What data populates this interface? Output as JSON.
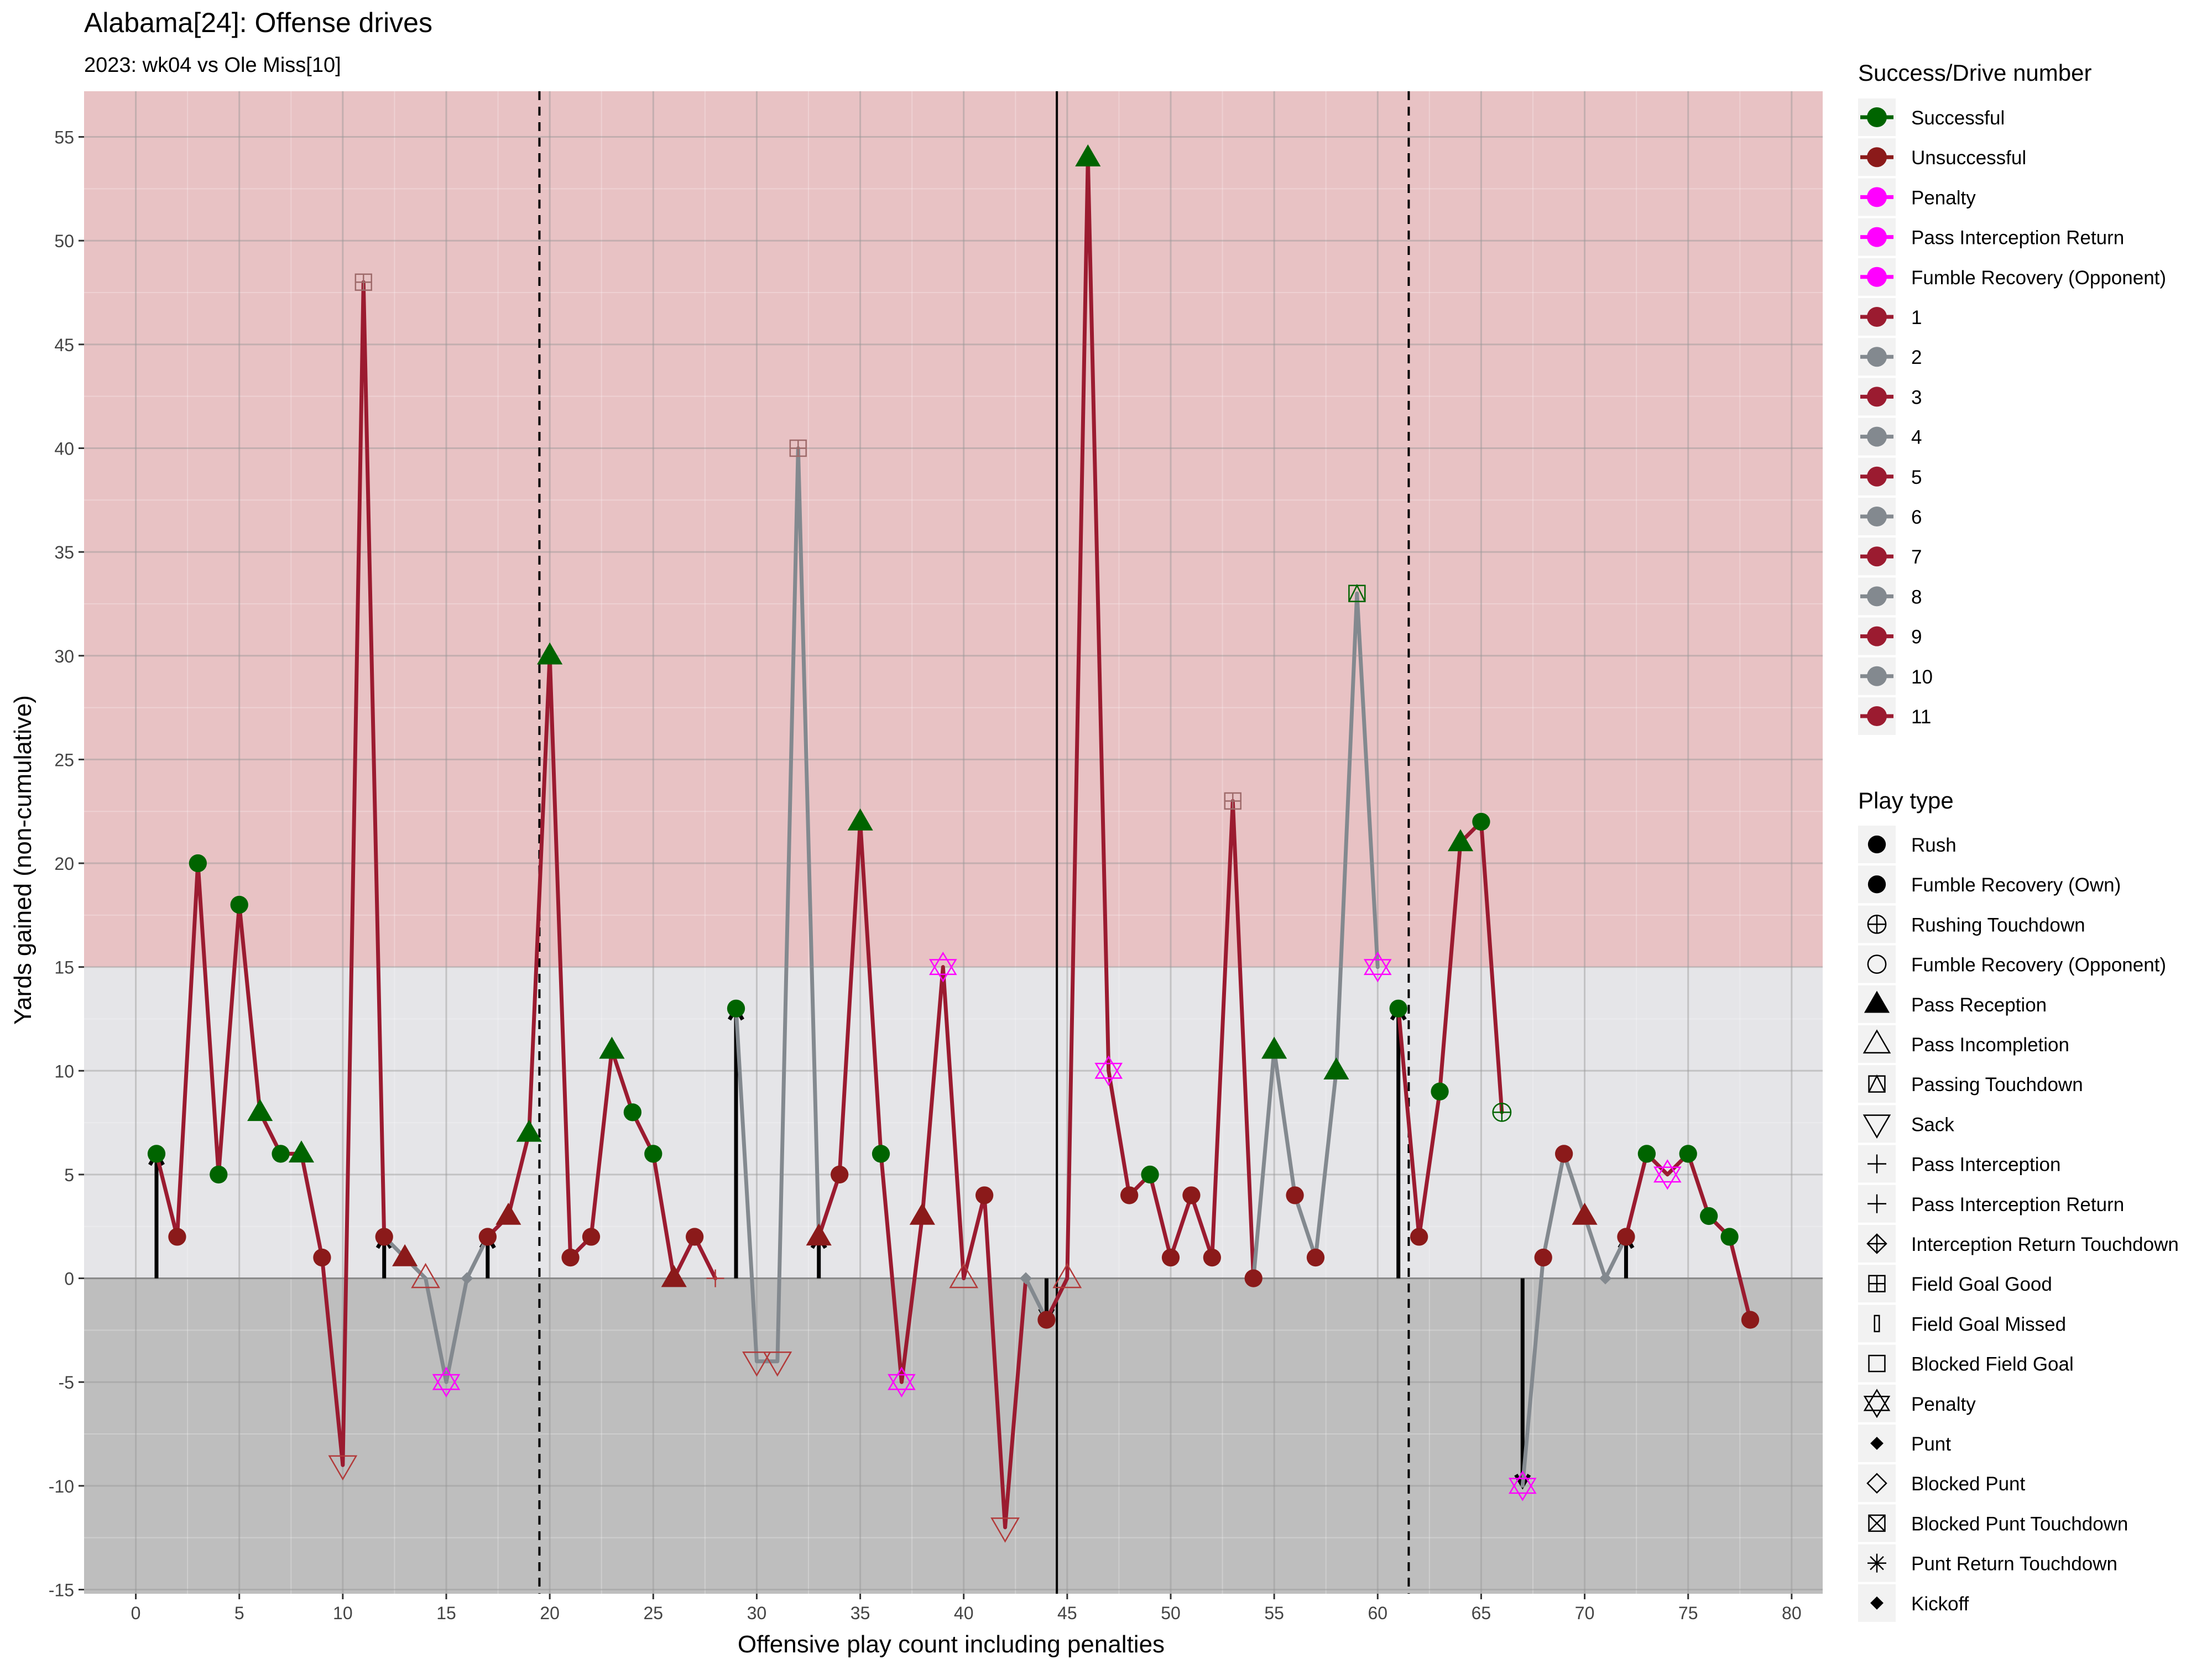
{
  "chart_data": {
    "type": "line",
    "title": "Alabama[24]: Offense drives",
    "subtitle": "2023: wk04 vs Ole Miss[10]",
    "xlabel": "Offensive play count including penalties",
    "ylabel": "Yards gained (non-cumulative)",
    "xlim": [
      -2.5,
      81.5
    ],
    "ylim": [
      -15.2,
      57.2
    ],
    "x_ticks": [
      0,
      5,
      10,
      15,
      20,
      25,
      30,
      35,
      40,
      45,
      50,
      55,
      60,
      65,
      70,
      75,
      80
    ],
    "y_ticks": [
      -15,
      -10,
      -5,
      0,
      5,
      10,
      15,
      20,
      25,
      30,
      35,
      40,
      45,
      50,
      55
    ],
    "grid": true,
    "legend_position": "right",
    "bands": [
      {
        "from": -15.2,
        "to": 0,
        "color": "#bebebe"
      },
      {
        "from": 0,
        "to": 15,
        "color": "#e5e5e8"
      },
      {
        "from": 15,
        "to": 57.2,
        "color": "#e8c2c4"
      }
    ],
    "vertical_lines": [
      {
        "x": 19.5,
        "style": "dashed"
      },
      {
        "x": 44.5,
        "style": "solid"
      },
      {
        "x": 61.5,
        "style": "dashed"
      }
    ],
    "colors": {
      "odd_drive": "#9b1b30",
      "even_drive": "#83898f",
      "successful": "#006400",
      "unsuccessful": "#8b1a1a",
      "penalty": "#ff00ff",
      "arrow": "#000000"
    },
    "drives": [
      {
        "name": "1",
        "start": 1,
        "end": 12
      },
      {
        "name": "2",
        "start": 12,
        "end": 17
      },
      {
        "name": "3",
        "start": 17,
        "end": 28
      },
      {
        "name": "4",
        "start": 29,
        "end": 33
      },
      {
        "name": "5",
        "start": 33,
        "end": 43
      },
      {
        "name": "6",
        "start": 43,
        "end": 44
      },
      {
        "name": "7",
        "start": 44,
        "end": 54
      },
      {
        "name": "8",
        "start": 54,
        "end": 60
      },
      {
        "name": "9",
        "start": 61,
        "end": 66
      },
      {
        "name": "10",
        "start": 67,
        "end": 72
      },
      {
        "name": "11",
        "start": 72,
        "end": 78
      }
    ],
    "arrows": [
      {
        "x": 1,
        "from": 0,
        "to": 6
      },
      {
        "x": 12,
        "from": 0,
        "to": 2
      },
      {
        "x": 17,
        "from": 0,
        "to": 2
      },
      {
        "x": 29,
        "from": 0,
        "to": 13
      },
      {
        "x": 33,
        "from": 0,
        "to": 2
      },
      {
        "x": 44,
        "from": 0,
        "to": -2
      },
      {
        "x": 61,
        "from": 0,
        "to": 13
      },
      {
        "x": 67,
        "from": 0,
        "to": -10
      },
      {
        "x": 72,
        "from": 0,
        "to": 2
      }
    ],
    "plays": [
      {
        "x": 1,
        "y": 6,
        "type": "Rush",
        "status": "Successful"
      },
      {
        "x": 2,
        "y": 2,
        "type": "Rush",
        "status": "Unsuccessful"
      },
      {
        "x": 3,
        "y": 20,
        "type": "Rush",
        "status": "Successful"
      },
      {
        "x": 4,
        "y": 5,
        "type": "Rush",
        "status": "Successful"
      },
      {
        "x": 5,
        "y": 18,
        "type": "Rush",
        "status": "Successful"
      },
      {
        "x": 6,
        "y": 8,
        "type": "Pass Reception",
        "status": "Successful"
      },
      {
        "x": 7,
        "y": 6,
        "type": "Rush",
        "status": "Successful"
      },
      {
        "x": 8,
        "y": 6,
        "type": "Pass Reception",
        "status": "Successful"
      },
      {
        "x": 9,
        "y": 1,
        "type": "Rush",
        "status": "Unsuccessful"
      },
      {
        "x": 10,
        "y": -9,
        "type": "Sack",
        "status": "Unsuccessful"
      },
      {
        "x": 11,
        "y": 48,
        "type": "Field Goal Good",
        "status": "Unsuccessful"
      },
      {
        "x": 12,
        "y": 2,
        "type": "Rush",
        "status": "Unsuccessful"
      },
      {
        "x": 13,
        "y": 1,
        "type": "Pass Reception",
        "status": "Unsuccessful"
      },
      {
        "x": 14,
        "y": 0,
        "type": "Pass Incompletion",
        "status": "Unsuccessful"
      },
      {
        "x": 15,
        "y": -5,
        "type": "Penalty",
        "status": "Penalty"
      },
      {
        "x": 16,
        "y": 0,
        "type": "Punt",
        "status": "Unsuccessful"
      },
      {
        "x": 17,
        "y": 2,
        "type": "Rush",
        "status": "Unsuccessful"
      },
      {
        "x": 18,
        "y": 3,
        "type": "Pass Reception",
        "status": "Unsuccessful"
      },
      {
        "x": 19,
        "y": 7,
        "type": "Pass Reception",
        "status": "Successful"
      },
      {
        "x": 20,
        "y": 30,
        "type": "Pass Reception",
        "status": "Successful"
      },
      {
        "x": 21,
        "y": 1,
        "type": "Rush",
        "status": "Unsuccessful"
      },
      {
        "x": 22,
        "y": 2,
        "type": "Rush",
        "status": "Unsuccessful"
      },
      {
        "x": 23,
        "y": 11,
        "type": "Pass Reception",
        "status": "Successful"
      },
      {
        "x": 24,
        "y": 8,
        "type": "Rush",
        "status": "Successful"
      },
      {
        "x": 25,
        "y": 6,
        "type": "Rush",
        "status": "Successful"
      },
      {
        "x": 26,
        "y": 0,
        "type": "Pass Reception",
        "status": "Unsuccessful"
      },
      {
        "x": 27,
        "y": 2,
        "type": "Rush",
        "status": "Unsuccessful"
      },
      {
        "x": 28,
        "y": 0,
        "type": "Pass Interception",
        "status": "Unsuccessful"
      },
      {
        "x": 29,
        "y": 13,
        "type": "Rush",
        "status": "Successful"
      },
      {
        "x": 30,
        "y": -4,
        "type": "Sack",
        "status": "Unsuccessful"
      },
      {
        "x": 31,
        "y": -4,
        "type": "Sack",
        "status": "Unsuccessful"
      },
      {
        "x": 32,
        "y": 40,
        "type": "Field Goal Good",
        "status": "Unsuccessful"
      },
      {
        "x": 33,
        "y": 2,
        "type": "Pass Reception",
        "status": "Unsuccessful"
      },
      {
        "x": 34,
        "y": 5,
        "type": "Rush",
        "status": "Unsuccessful"
      },
      {
        "x": 35,
        "y": 22,
        "type": "Pass Reception",
        "status": "Successful"
      },
      {
        "x": 36,
        "y": 6,
        "type": "Rush",
        "status": "Successful"
      },
      {
        "x": 37,
        "y": -5,
        "type": "Penalty",
        "status": "Penalty"
      },
      {
        "x": 38,
        "y": 3,
        "type": "Pass Reception",
        "status": "Unsuccessful"
      },
      {
        "x": 39,
        "y": 15,
        "type": "Penalty",
        "status": "Penalty"
      },
      {
        "x": 40,
        "y": 0,
        "type": "Pass Incompletion",
        "status": "Unsuccessful"
      },
      {
        "x": 41,
        "y": 4,
        "type": "Rush",
        "status": "Unsuccessful"
      },
      {
        "x": 42,
        "y": -12,
        "type": "Sack",
        "status": "Unsuccessful"
      },
      {
        "x": 43,
        "y": 0,
        "type": "Punt",
        "status": "Unsuccessful"
      },
      {
        "x": 44,
        "y": -2,
        "type": "Rush",
        "status": "Unsuccessful"
      },
      {
        "x": 45,
        "y": 0,
        "type": "Pass Incompletion",
        "status": "Unsuccessful"
      },
      {
        "x": 46,
        "y": 54,
        "type": "Pass Reception",
        "status": "Successful"
      },
      {
        "x": 47,
        "y": 10,
        "type": "Penalty",
        "status": "Penalty"
      },
      {
        "x": 48,
        "y": 4,
        "type": "Rush",
        "status": "Unsuccessful"
      },
      {
        "x": 49,
        "y": 5,
        "type": "Rush",
        "status": "Successful"
      },
      {
        "x": 50,
        "y": 1,
        "type": "Rush",
        "status": "Unsuccessful"
      },
      {
        "x": 51,
        "y": 4,
        "type": "Rush",
        "status": "Unsuccessful"
      },
      {
        "x": 52,
        "y": 1,
        "type": "Rush",
        "status": "Unsuccessful"
      },
      {
        "x": 53,
        "y": 23,
        "type": "Field Goal Good",
        "status": "Unsuccessful"
      },
      {
        "x": 54,
        "y": 0,
        "type": "Rush",
        "status": "Unsuccessful"
      },
      {
        "x": 55,
        "y": 11,
        "type": "Pass Reception",
        "status": "Successful"
      },
      {
        "x": 56,
        "y": 4,
        "type": "Rush",
        "status": "Unsuccessful"
      },
      {
        "x": 57,
        "y": 1,
        "type": "Rush",
        "status": "Unsuccessful"
      },
      {
        "x": 58,
        "y": 10,
        "type": "Pass Reception",
        "status": "Successful"
      },
      {
        "x": 59,
        "y": 33,
        "type": "Passing Touchdown",
        "status": "Successful"
      },
      {
        "x": 60,
        "y": 15,
        "type": "Penalty",
        "status": "Penalty"
      },
      {
        "x": 61,
        "y": 13,
        "type": "Rush",
        "status": "Successful"
      },
      {
        "x": 62,
        "y": 2,
        "type": "Rush",
        "status": "Unsuccessful"
      },
      {
        "x": 63,
        "y": 9,
        "type": "Rush",
        "status": "Successful"
      },
      {
        "x": 64,
        "y": 21,
        "type": "Pass Reception",
        "status": "Successful"
      },
      {
        "x": 65,
        "y": 22,
        "type": "Rush",
        "status": "Successful"
      },
      {
        "x": 66,
        "y": 8,
        "type": "Rushing Touchdown",
        "status": "Successful"
      },
      {
        "x": 67,
        "y": -10,
        "type": "Penalty",
        "status": "Penalty"
      },
      {
        "x": 68,
        "y": 1,
        "type": "Rush",
        "status": "Unsuccessful"
      },
      {
        "x": 69,
        "y": 6,
        "type": "Rush",
        "status": "Unsuccessful"
      },
      {
        "x": 70,
        "y": 3,
        "type": "Pass Reception",
        "status": "Unsuccessful"
      },
      {
        "x": 71,
        "y": 0,
        "type": "Punt",
        "status": "Unsuccessful"
      },
      {
        "x": 72,
        "y": 2,
        "type": "Rush",
        "status": "Unsuccessful"
      },
      {
        "x": 73,
        "y": 6,
        "type": "Rush",
        "status": "Successful"
      },
      {
        "x": 74,
        "y": 5,
        "type": "Penalty",
        "status": "Penalty"
      },
      {
        "x": 75,
        "y": 6,
        "type": "Rush",
        "status": "Successful"
      },
      {
        "x": 76,
        "y": 3,
        "type": "Rush",
        "status": "Successful"
      },
      {
        "x": 77,
        "y": 2,
        "type": "Rush",
        "status": "Successful"
      },
      {
        "x": 78,
        "y": -2,
        "type": "Rush",
        "status": "Unsuccessful"
      }
    ],
    "legend_success": {
      "title": "Success/Drive number",
      "items": [
        {
          "label": "Successful",
          "color": "#006400"
        },
        {
          "label": "Unsuccessful",
          "color": "#8b1a1a"
        },
        {
          "label": "Penalty",
          "color": "#ff00ff"
        },
        {
          "label": "Pass Interception Return",
          "color": "#ff00ff"
        },
        {
          "label": "Fumble Recovery (Opponent)",
          "color": "#ff00ff"
        },
        {
          "label": "1",
          "color": "#9b1b30"
        },
        {
          "label": "2",
          "color": "#83898f"
        },
        {
          "label": "3",
          "color": "#9b1b30"
        },
        {
          "label": "4",
          "color": "#83898f"
        },
        {
          "label": "5",
          "color": "#9b1b30"
        },
        {
          "label": "6",
          "color": "#83898f"
        },
        {
          "label": "7",
          "color": "#9b1b30"
        },
        {
          "label": "8",
          "color": "#83898f"
        },
        {
          "label": "9",
          "color": "#9b1b30"
        },
        {
          "label": "10",
          "color": "#83898f"
        },
        {
          "label": "11",
          "color": "#9b1b30"
        }
      ]
    },
    "legend_playtype": {
      "title": "Play type",
      "items": [
        {
          "label": "Rush",
          "shape": "circle-filled"
        },
        {
          "label": "Fumble Recovery (Own)",
          "shape": "circle-filled"
        },
        {
          "label": "Rushing Touchdown",
          "shape": "circle-plus"
        },
        {
          "label": "Fumble Recovery (Opponent)",
          "shape": "circle-open"
        },
        {
          "label": "Pass Reception",
          "shape": "triangle-filled"
        },
        {
          "label": "Pass Incompletion",
          "shape": "triangle-open"
        },
        {
          "label": "Passing Touchdown",
          "shape": "square-triangle"
        },
        {
          "label": "Sack",
          "shape": "triangle-down-open"
        },
        {
          "label": "Pass Interception",
          "shape": "plus"
        },
        {
          "label": "Pass Interception Return",
          "shape": "plus"
        },
        {
          "label": "Interception Return Touchdown",
          "shape": "diamond-plus"
        },
        {
          "label": "Field Goal Good",
          "shape": "square-plus"
        },
        {
          "label": "Field Goal Missed",
          "shape": "thin-rect"
        },
        {
          "label": "Blocked Field Goal",
          "shape": "square-open"
        },
        {
          "label": "Penalty",
          "shape": "star-of-david"
        },
        {
          "label": "Punt",
          "shape": "diamond-filled"
        },
        {
          "label": "Blocked Punt",
          "shape": "diamond-open"
        },
        {
          "label": "Blocked Punt Touchdown",
          "shape": "square-x"
        },
        {
          "label": "Punt Return Touchdown",
          "shape": "asterisk"
        },
        {
          "label": "Kickoff",
          "shape": "diamond-filled"
        }
      ]
    }
  }
}
